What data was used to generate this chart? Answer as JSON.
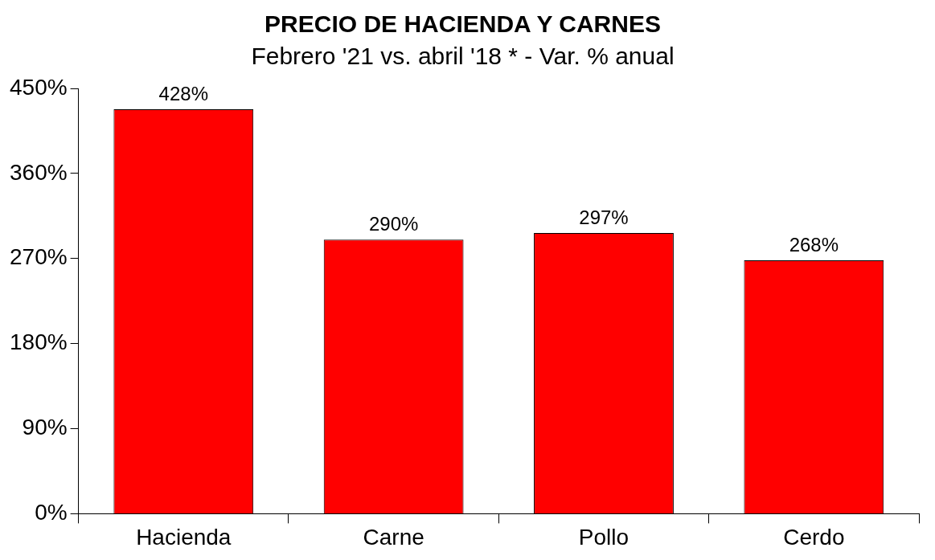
{
  "chart_data": {
    "type": "bar",
    "title": "PRECIO DE HACIENDA Y CARNES",
    "subtitle": "Febrero '21 vs. abril '18 * - Var. % anual",
    "categories": [
      "Hacienda",
      "Carne",
      "Pollo",
      "Cerdo"
    ],
    "values": [
      428,
      290,
      297,
      268
    ],
    "value_labels": [
      "428%",
      "290%",
      "297%",
      "268%"
    ],
    "color": "#ff0000",
    "ylim": [
      0,
      450
    ],
    "yticks": [
      {
        "value": 0,
        "label": "0%"
      },
      {
        "value": 90,
        "label": "90%"
      },
      {
        "value": 180,
        "label": "180%"
      },
      {
        "value": 270,
        "label": "270%"
      },
      {
        "value": 360,
        "label": "360%"
      },
      {
        "value": 450,
        "label": "450%"
      }
    ],
    "grid": false,
    "legend": false
  }
}
